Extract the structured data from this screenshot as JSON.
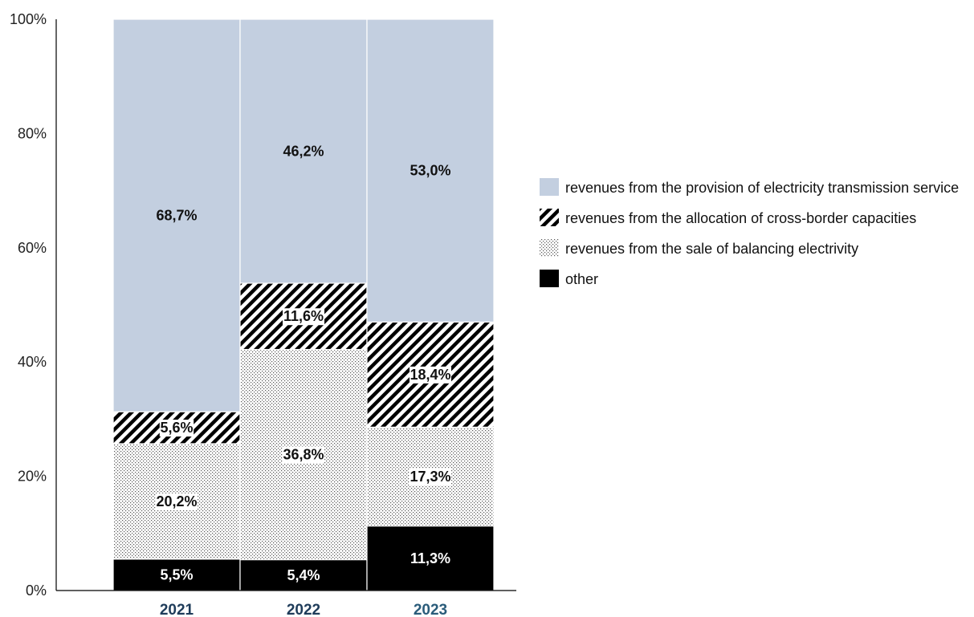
{
  "chart_data": {
    "type": "bar",
    "stacked": true,
    "categories": [
      "2021",
      "2022",
      "2023"
    ],
    "series": [
      {
        "name": "other",
        "values": [
          5.5,
          5.4,
          11.3
        ],
        "labels": [
          "5,5%",
          "5,4%",
          "11,3%"
        ],
        "color": "#000000",
        "pattern": "solid"
      },
      {
        "name": "revenues from the sale of balancing electrivity",
        "values": [
          20.2,
          36.8,
          17.3
        ],
        "labels": [
          "20,2%",
          "36,8%",
          "17,3%"
        ],
        "color": "#ffffff",
        "pattern": "dots"
      },
      {
        "name": "revenues from the allocation of cross-border capacities",
        "values": [
          5.6,
          11.6,
          18.4
        ],
        "labels": [
          "5,6%",
          "11,6%",
          "18,4%"
        ],
        "color": "#000000",
        "pattern": "diagonal-stripes"
      },
      {
        "name": "revenues from the provision of electricity transmission service",
        "values": [
          68.7,
          46.2,
          53.0
        ],
        "labels": [
          "68,7%",
          "46,2%",
          "53,0%"
        ],
        "color": "#c3cfe0",
        "pattern": "solid"
      }
    ],
    "yticks": [
      "0%",
      "20%",
      "40%",
      "60%",
      "80%",
      "100%"
    ],
    "ylim": [
      0,
      100
    ],
    "legend_order": [
      3,
      2,
      1,
      0
    ],
    "legend_position": "right",
    "grid": false,
    "category_colors": [
      "#1f3c5a",
      "#1f3c5a",
      "#2a5c7a"
    ]
  }
}
